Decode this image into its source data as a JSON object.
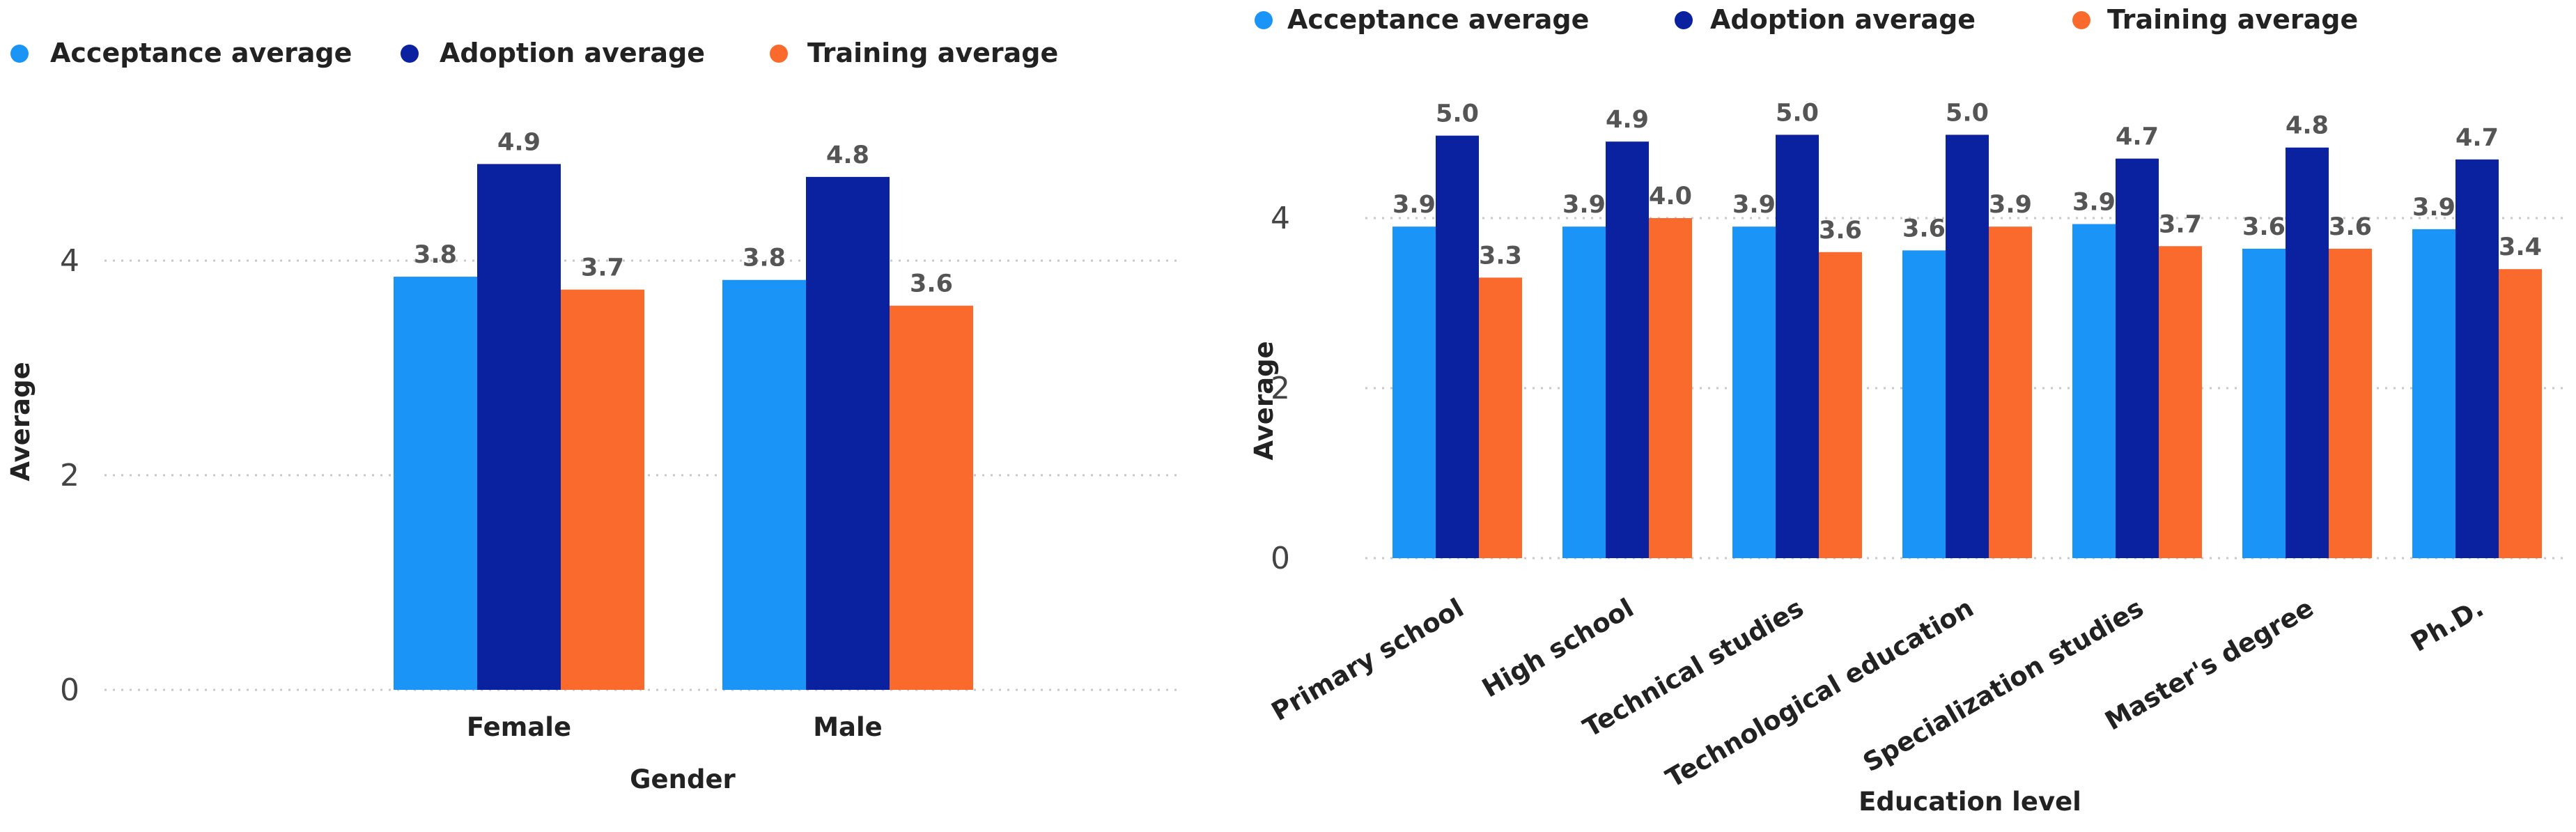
{
  "chart_data": [
    {
      "type": "bar",
      "title": "",
      "xlabel": "Gender",
      "ylabel": "Average",
      "ylim": [
        0,
        5
      ],
      "yticks": [
        "0",
        "2",
        "4"
      ],
      "categories": [
        "Female",
        "Male"
      ],
      "series": [
        {
          "name": "Acceptance average",
          "color": "#1a94f7",
          "values": [
            3.85,
            3.82
          ],
          "labels": [
            "3.8",
            "3.8"
          ]
        },
        {
          "name": "Adoption average",
          "color": "#0a22a0",
          "values": [
            4.9,
            4.78
          ],
          "labels": [
            "4.9",
            "4.8"
          ]
        },
        {
          "name": "Training average",
          "color": "#fa6a2c",
          "values": [
            3.73,
            3.58
          ],
          "labels": [
            "3.7",
            "3.6"
          ]
        }
      ]
    },
    {
      "type": "bar",
      "title": "",
      "xlabel": "Education level",
      "ylabel": "Average",
      "ylim": [
        0,
        5
      ],
      "yticks": [
        "0",
        "2",
        "4"
      ],
      "categories": [
        "Primary school",
        "High school",
        "Technical studies",
        "Technological education",
        "Specialization studies",
        "Master's degree",
        "Ph.D."
      ],
      "series": [
        {
          "name": "Acceptance average",
          "color": "#1a94f7",
          "values": [
            3.9,
            3.9,
            3.9,
            3.62,
            3.93,
            3.64,
            3.87
          ],
          "labels": [
            "3.9",
            "3.9",
            "3.9",
            "3.6",
            "3.9",
            "3.6",
            "3.9"
          ]
        },
        {
          "name": "Adoption average",
          "color": "#0a22a0",
          "values": [
            4.97,
            4.9,
            4.98,
            4.98,
            4.7,
            4.83,
            4.69
          ],
          "labels": [
            "5.0",
            "4.9",
            "5.0",
            "5.0",
            "4.7",
            "4.8",
            "4.7"
          ]
        },
        {
          "name": "Training average",
          "color": "#fa6a2c",
          "values": [
            3.3,
            4.0,
            3.6,
            3.9,
            3.67,
            3.64,
            3.4
          ],
          "labels": [
            "3.3",
            "4.0",
            "3.6",
            "3.9",
            "3.7",
            "3.6",
            "3.4"
          ]
        }
      ]
    }
  ]
}
